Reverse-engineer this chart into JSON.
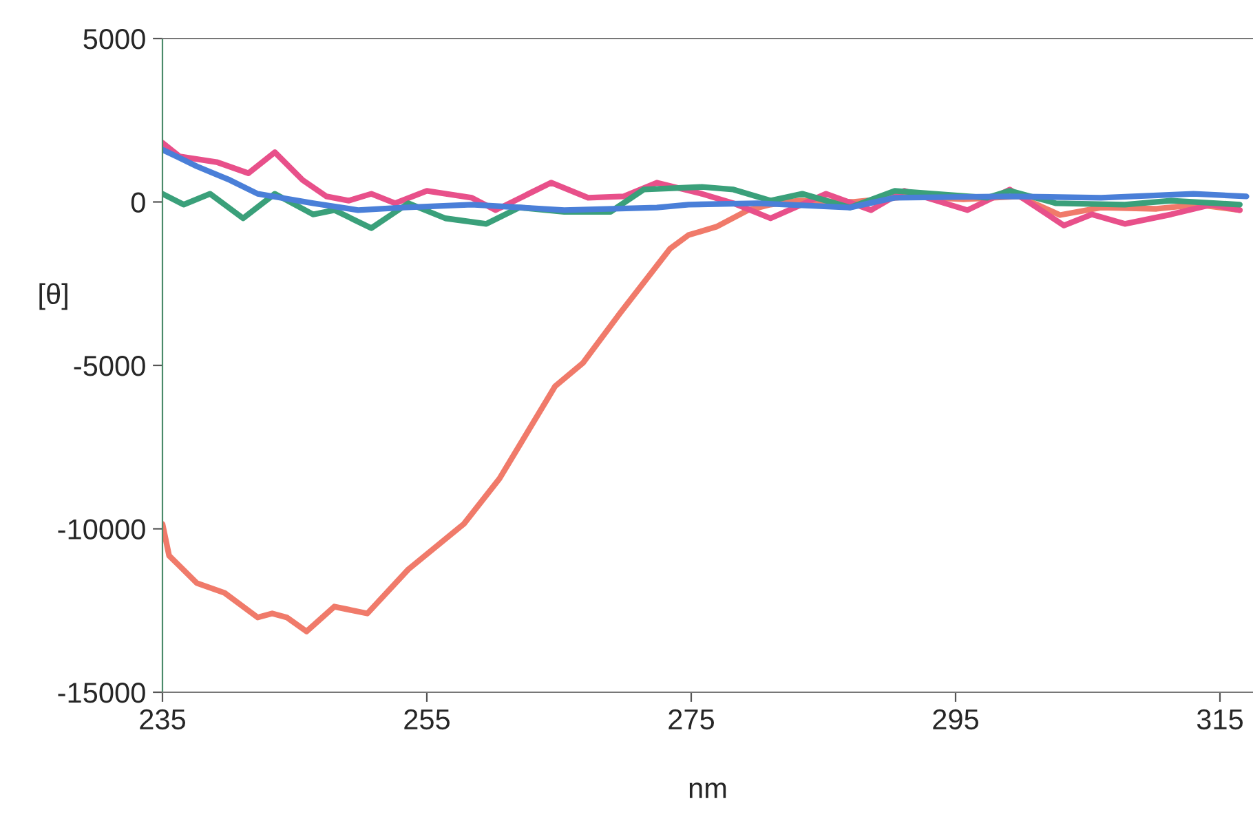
{
  "chart_data": {
    "type": "line",
    "xlabel": "nm",
    "ylabel": "[θ]",
    "xlim": [
      235,
      317.5
    ],
    "xticks": [
      235,
      255,
      275,
      295,
      315
    ],
    "ylim": [
      -15000,
      5000
    ],
    "yticks": [
      -15000,
      -10000,
      -5000,
      0,
      5000
    ],
    "grid": false,
    "marker": "none",
    "line_style": "solid",
    "series": [
      {
        "color": "#f07a6a",
        "x": [
          235,
          235.5,
          237.6,
          239.7,
          242.2,
          243.3,
          244.4,
          245.9,
          248.0,
          250.5,
          253.6,
          257.8,
          260.5,
          264.7,
          266.8,
          269.6,
          273.4,
          274.8,
          276.9,
          279.3,
          281.0,
          283.1,
          287.3,
          291.5,
          295.6,
          299.8,
          302.9,
          306.0,
          310.2,
          313.3,
          316.5
        ],
        "values": [
          -9850,
          -10820,
          -11660,
          -11960,
          -12710,
          -12590,
          -12710,
          -13140,
          -12380,
          -12590,
          -11240,
          -9850,
          -8460,
          -5640,
          -4930,
          -3410,
          -1430,
          -1010,
          -760,
          -250,
          -80,
          40,
          0,
          170,
          80,
          170,
          -400,
          -170,
          -210,
          -80,
          -250
        ]
      },
      {
        "color": "#e8508a",
        "x": [
          235,
          236.3,
          239.1,
          241.5,
          243.5,
          245.6,
          247.4,
          249.1,
          250.8,
          252.6,
          255.0,
          258.4,
          260.2,
          264.4,
          267.2,
          269.9,
          272.4,
          275.8,
          278.2,
          281.0,
          285.2,
          288.6,
          291.1,
          295.9,
          299.1,
          303.2,
          305.3,
          307.8,
          311.3,
          314.4,
          316.5
        ],
        "values": [
          1810,
          1390,
          1220,
          880,
          1520,
          670,
          170,
          40,
          250,
          -40,
          340,
          130,
          -250,
          590,
          130,
          170,
          590,
          250,
          -40,
          -500,
          250,
          -250,
          340,
          -250,
          380,
          -720,
          -380,
          -670,
          -380,
          -80,
          -250
        ]
      },
      {
        "color": "#3aa07a",
        "x": [
          235,
          236.6,
          238.6,
          241.1,
          243.5,
          246.4,
          248.0,
          250.8,
          253.6,
          256.4,
          259.5,
          262.0,
          265.4,
          268.9,
          271.4,
          275.8,
          278.2,
          281.0,
          283.4,
          287.0,
          290.4,
          297.4,
          299.1,
          302.6,
          307.8,
          311.3,
          316.5
        ],
        "values": [
          250,
          -80,
          250,
          -500,
          250,
          -380,
          -250,
          -800,
          -40,
          -500,
          -670,
          -170,
          -300,
          -300,
          380,
          460,
          380,
          40,
          250,
          -170,
          340,
          130,
          340,
          -40,
          -80,
          40,
          -80
        ]
      },
      {
        "color": "#4a7fd8",
        "x": [
          235,
          237.6,
          240.1,
          242.2,
          246.4,
          249.8,
          253.2,
          258.4,
          265.4,
          272.4,
          274.8,
          280,
          287.0,
          290.4,
          299.1,
          306.0,
          313.0,
          317.0
        ],
        "values": [
          1600,
          1090,
          670,
          250,
          -40,
          -250,
          -170,
          -80,
          -250,
          -170,
          -80,
          -40,
          -170,
          130,
          170,
          130,
          250,
          170
        ]
      }
    ]
  }
}
